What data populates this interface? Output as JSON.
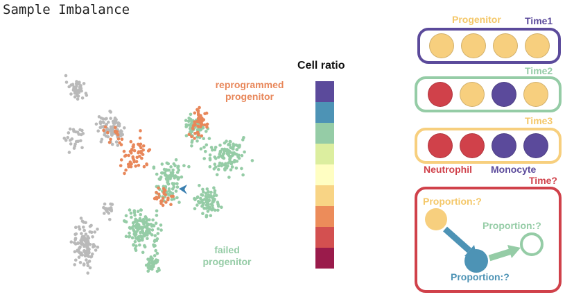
{
  "title": "Sample Imbalance",
  "scatter": {
    "annotation_reprogrammed": "reprogrammed progenitor",
    "annotation_failed": "failed progenitor",
    "colors": {
      "grey": "#b9b9b9",
      "orange": "#e8875a",
      "green": "#95cca6",
      "arrow": "#3a7fb0"
    }
  },
  "colorbar": {
    "title": "Cell ratio",
    "colors": [
      "#5b4a9b",
      "#4d93b5",
      "#95cca6",
      "#dcee9f",
      "#fffec2",
      "#f8d485",
      "#ec8c5a",
      "#d35050",
      "#9a1b4b"
    ]
  },
  "timeline": {
    "progenitor_label": "Progenitor",
    "neutrophil_label": "Neutrophil",
    "monocyte_label": "Monocyte",
    "rows": [
      {
        "time_label": "Time1",
        "border_color": "#5b4a9b",
        "label_color": "#5b4a9b",
        "dots": [
          "#f7cf7e",
          "#f7cf7e",
          "#f7cf7e",
          "#f7cf7e"
        ]
      },
      {
        "time_label": "Time2",
        "border_color": "#95cca6",
        "label_color": "#95cca6",
        "dots": [
          "#d0414a",
          "#f7cf7e",
          "#5b4a9b",
          "#f7cf7e"
        ]
      },
      {
        "time_label": "Time3",
        "border_color": "#f7cf7e",
        "label_color": "#f4c768",
        "dots": [
          "#d0414a",
          "#d0414a",
          "#5b4a9b",
          "#5b4a9b"
        ]
      }
    ],
    "unknown": {
      "time_label": "Time?",
      "proportion_label": "Proportion:?",
      "border_color": "#d0414a",
      "node_colors": [
        "#f7cf7e",
        "#4d93b5",
        "#95cca6"
      ]
    },
    "colors": {
      "progenitor": "#f7cf7e",
      "neutrophil": "#d0414a",
      "monocyte": "#5b4a9b"
    }
  }
}
